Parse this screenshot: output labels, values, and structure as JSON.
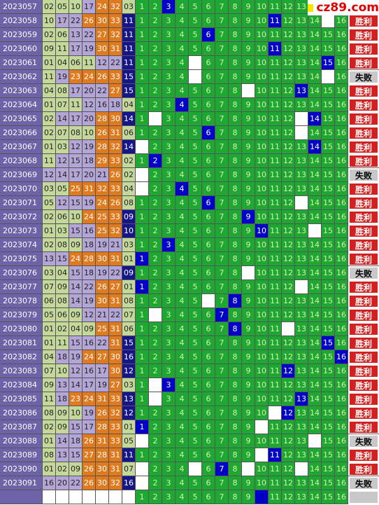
{
  "logo": "cz89.com",
  "grid_numbers": [
    1,
    2,
    3,
    4,
    5,
    6,
    7,
    8,
    9,
    10,
    11,
    12,
    13,
    14,
    15,
    16
  ],
  "rows": [
    {
      "issue": "2023057",
      "reds": [
        "02",
        "05",
        "10",
        "17",
        "24",
        "32"
      ],
      "blue": "03",
      "hit": 3,
      "blanks": [],
      "result": "胜利"
    },
    {
      "issue": "2023058",
      "reds": [
        "10",
        "17",
        "22",
        "26",
        "30",
        "33"
      ],
      "blue": "11",
      "hit": 11,
      "blanks": [
        15
      ],
      "result": "胜利"
    },
    {
      "issue": "2023059",
      "reds": [
        "02",
        "06",
        "13",
        "22",
        "27",
        "32"
      ],
      "blue": "11",
      "hit": 6,
      "blanks": [],
      "result": "胜利"
    },
    {
      "issue": "2023060",
      "reds": [
        "09",
        "11",
        "17",
        "19",
        "30",
        "31"
      ],
      "blue": "11",
      "hit": 11,
      "blanks": [],
      "result": "胜利"
    },
    {
      "issue": "2023061",
      "reds": [
        "01",
        "04",
        "06",
        "11",
        "12",
        "22"
      ],
      "blue": "11",
      "hit": 15,
      "blanks": [
        5
      ],
      "result": "胜利"
    },
    {
      "issue": "2023062",
      "reds": [
        "11",
        "19",
        "23",
        "24",
        "26",
        "33"
      ],
      "blue": "15",
      "hit": null,
      "blanks": [
        5,
        15
      ],
      "result": "失败"
    },
    {
      "issue": "2023063",
      "reds": [
        "04",
        "08",
        "17",
        "20",
        "22",
        "27"
      ],
      "blue": "15",
      "hit": 13,
      "blanks": [
        9
      ],
      "result": "胜利"
    },
    {
      "issue": "2023064",
      "reds": [
        "01",
        "07",
        "11",
        "12",
        "16",
        "18"
      ],
      "blue": "04",
      "hit": 4,
      "blanks": [],
      "result": "胜利"
    },
    {
      "issue": "2023065",
      "reds": [
        "02",
        "14",
        "17",
        "20",
        "28",
        "30"
      ],
      "blue": "14",
      "hit": 14,
      "blanks": [
        2,
        13
      ],
      "result": "胜利"
    },
    {
      "issue": "2023066",
      "reds": [
        "02",
        "07",
        "08",
        "10",
        "26",
        "31"
      ],
      "blue": "06",
      "hit": 6,
      "blanks": [
        13
      ],
      "result": "胜利"
    },
    {
      "issue": "2023067",
      "reds": [
        "01",
        "03",
        "12",
        "19",
        "28",
        "32"
      ],
      "blue": "14",
      "hit": 14,
      "blanks": [
        1
      ],
      "result": "胜利"
    },
    {
      "issue": "2023068",
      "reds": [
        "11",
        "12",
        "15",
        "18",
        "29",
        "33"
      ],
      "blue": "02",
      "hit": 2,
      "blanks": [],
      "result": "胜利"
    },
    {
      "issue": "2023069",
      "reds": [
        "12",
        "14",
        "17",
        "20",
        "21",
        "26"
      ],
      "blue": "02",
      "hit": null,
      "blanks": [
        1
      ],
      "result": "失败"
    },
    {
      "issue": "2023070",
      "reds": [
        "03",
        "05",
        "25",
        "31",
        "32",
        "33"
      ],
      "blue": "04",
      "hit": 4,
      "blanks": [
        1
      ],
      "result": "胜利"
    },
    {
      "issue": "2023071",
      "reds": [
        "05",
        "12",
        "15",
        "19",
        "24",
        "26"
      ],
      "blue": "08",
      "hit": 6,
      "blanks": [
        13
      ],
      "result": "胜利"
    },
    {
      "issue": "2023072",
      "reds": [
        "02",
        "06",
        "10",
        "24",
        "25",
        "33"
      ],
      "blue": "09",
      "hit": 9,
      "blanks": [],
      "result": "胜利"
    },
    {
      "issue": "2023073",
      "reds": [
        "01",
        "03",
        "15",
        "16",
        "25",
        "32"
      ],
      "blue": "10",
      "hit": 10,
      "blanks": [
        14
      ],
      "result": "胜利"
    },
    {
      "issue": "2023074",
      "reds": [
        "02",
        "08",
        "09",
        "18",
        "19",
        "21"
      ],
      "blue": "03",
      "hit": 3,
      "blanks": [],
      "result": "胜利"
    },
    {
      "issue": "2023075",
      "reds": [
        "13",
        "15",
        "24",
        "28",
        "30",
        "31"
      ],
      "blue": "01",
      "hit": 1,
      "blanks": [],
      "result": "胜利"
    },
    {
      "issue": "2023076",
      "reds": [
        "03",
        "04",
        "15",
        "18",
        "19",
        "22"
      ],
      "blue": "09",
      "hit": null,
      "blanks": [
        9
      ],
      "result": "失败"
    },
    {
      "issue": "2023077",
      "reds": [
        "07",
        "09",
        "14",
        "22",
        "26",
        "27"
      ],
      "blue": "01",
      "hit": 1,
      "blanks": [
        13
      ],
      "result": "胜利"
    },
    {
      "issue": "2023078",
      "reds": [
        "06",
        "08",
        "14",
        "19",
        "30",
        "31"
      ],
      "blue": "08",
      "hit": 8,
      "blanks": [
        6
      ],
      "result": "胜利"
    },
    {
      "issue": "2023079",
      "reds": [
        "05",
        "06",
        "09",
        "12",
        "21",
        "22"
      ],
      "blue": "07",
      "hit": 7,
      "blanks": [
        2
      ],
      "result": "胜利"
    },
    {
      "issue": "2023080",
      "reds": [
        "01",
        "02",
        "04",
        "09",
        "25",
        "31"
      ],
      "blue": "06",
      "hit": 8,
      "blanks": [
        12
      ],
      "result": "胜利"
    },
    {
      "issue": "2023081",
      "reds": [
        "01",
        "11",
        "15",
        "16",
        "22",
        "31"
      ],
      "blue": "15",
      "hit": 15,
      "blanks": [],
      "result": "胜利"
    },
    {
      "issue": "2023082",
      "reds": [
        "04",
        "18",
        "19",
        "24",
        "27",
        "30"
      ],
      "blue": "16",
      "hit": 16,
      "blanks": [],
      "result": "胜利"
    },
    {
      "issue": "2023083",
      "reds": [
        "07",
        "10",
        "12",
        "16",
        "17",
        "30"
      ],
      "blue": "12",
      "hit": 12,
      "blanks": [],
      "result": "胜利"
    },
    {
      "issue": "2023084",
      "reds": [
        "09",
        "13",
        "14",
        "17",
        "19",
        "27"
      ],
      "blue": "03",
      "hit": 3,
      "blanks": [
        2
      ],
      "result": "胜利"
    },
    {
      "issue": "2023085",
      "reds": [
        "11",
        "18",
        "23",
        "24",
        "31",
        "33"
      ],
      "blue": "13",
      "hit": 13,
      "blanks": [
        2
      ],
      "result": "胜利"
    },
    {
      "issue": "2023086",
      "reds": [
        "08",
        "09",
        "10",
        "19",
        "26",
        "32"
      ],
      "blue": "12",
      "hit": 12,
      "blanks": [
        11
      ],
      "result": "胜利"
    },
    {
      "issue": "2023087",
      "reds": [
        "02",
        "09",
        "15",
        "17",
        "28",
        "33"
      ],
      "blue": "01",
      "hit": 1,
      "blanks": [
        10
      ],
      "result": "胜利"
    },
    {
      "issue": "2023088",
      "reds": [
        "01",
        "14",
        "18",
        "26",
        "31",
        "33"
      ],
      "blue": "05",
      "hit": null,
      "blanks": [
        1,
        14
      ],
      "result": "失败"
    },
    {
      "issue": "2023089",
      "reds": [
        "08",
        "13",
        "15",
        "27",
        "28",
        "31"
      ],
      "blue": "11",
      "hit": 11,
      "blanks": [
        10
      ],
      "result": "胜利"
    },
    {
      "issue": "2023090",
      "reds": [
        "01",
        "02",
        "09",
        "26",
        "30",
        "31"
      ],
      "blue": "07",
      "hit": 7,
      "blanks": [
        1,
        5,
        9,
        13
      ],
      "result": "胜利"
    },
    {
      "issue": "2023091",
      "reds": [
        "16",
        "20",
        "22",
        "26",
        "30",
        "32"
      ],
      "blue": "16",
      "hit": null,
      "blanks": [
        1
      ],
      "result": "失败"
    }
  ],
  "next_hit": 10
}
